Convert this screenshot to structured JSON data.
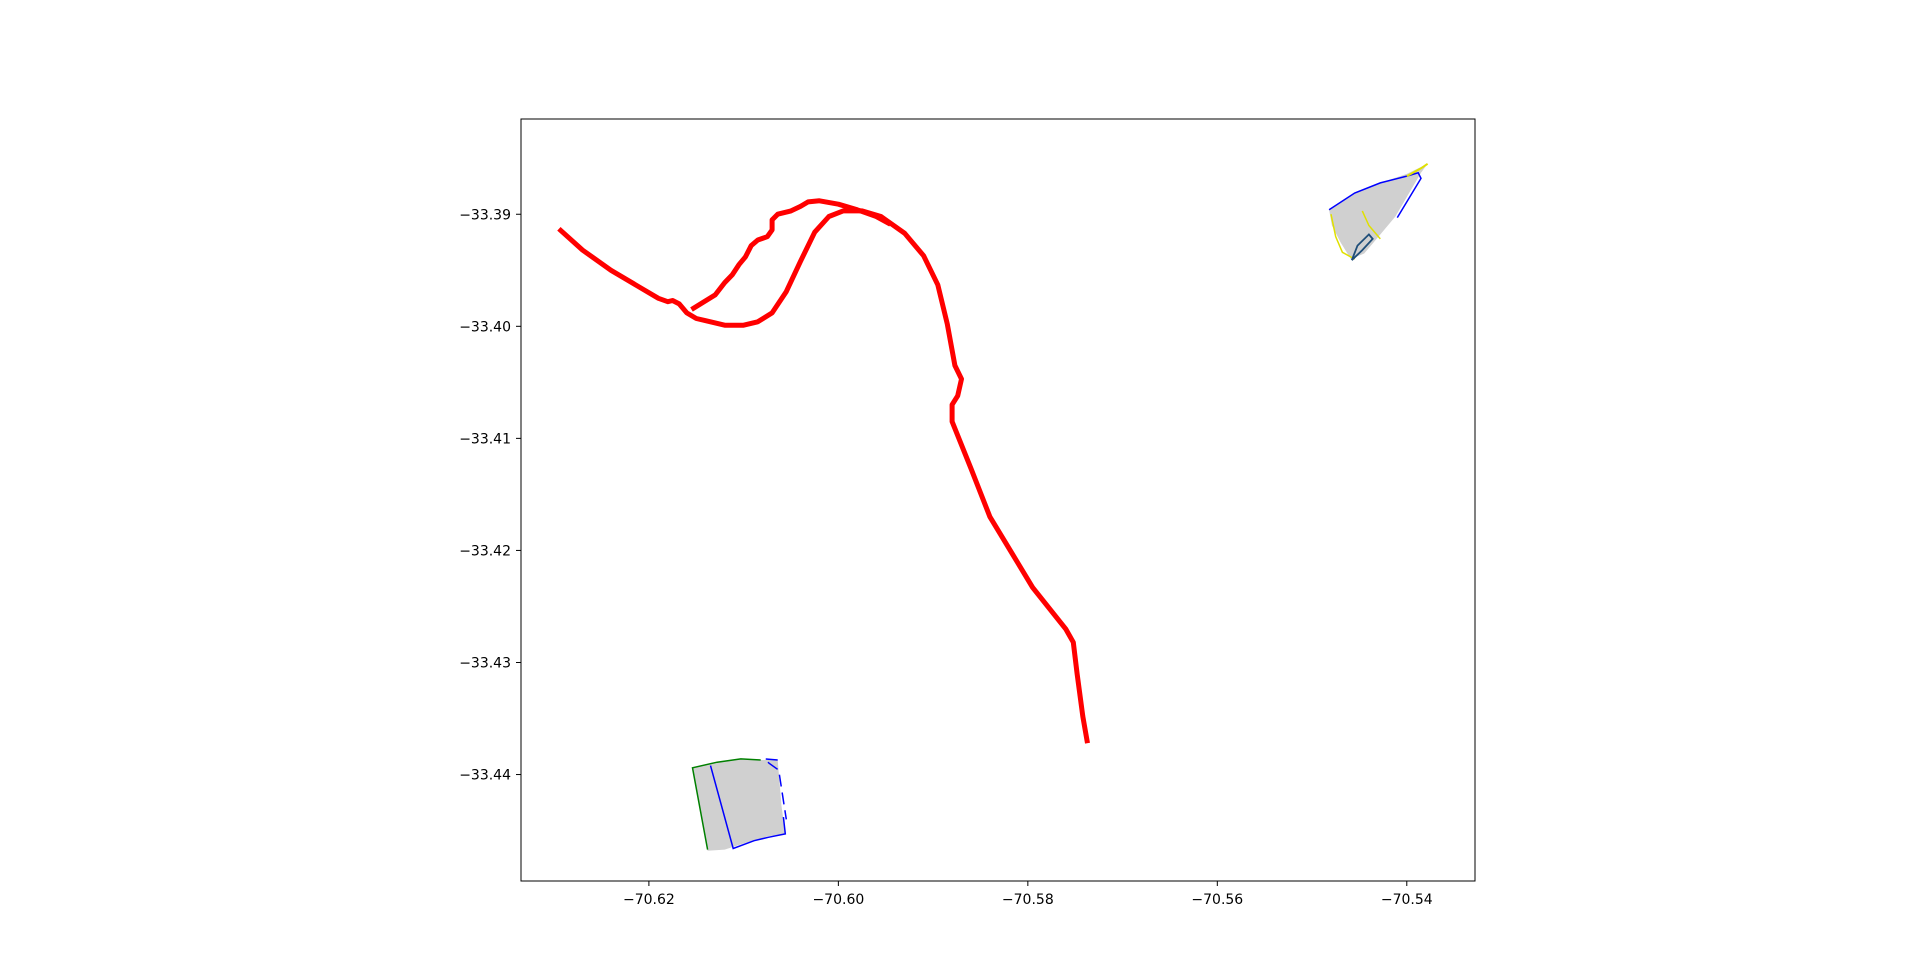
{
  "map": {
    "x_ticks": [
      {
        "value": -70.62,
        "label": "−70.62"
      },
      {
        "value": -70.6,
        "label": "−70.60"
      },
      {
        "value": -70.58,
        "label": "−70.58"
      },
      {
        "value": -70.56,
        "label": "−70.56"
      },
      {
        "value": -70.54,
        "label": "−70.54"
      }
    ],
    "y_ticks": [
      {
        "value": -33.39,
        "label": "−33.39"
      },
      {
        "value": -33.4,
        "label": "−33.40"
      },
      {
        "value": -33.41,
        "label": "−33.41"
      },
      {
        "value": -33.42,
        "label": "−33.42"
      },
      {
        "value": -33.43,
        "label": "−33.43"
      },
      {
        "value": -33.44,
        "label": "−33.44"
      }
    ],
    "xlim": [
      -70.6335,
      -70.5328
    ],
    "ylim": [
      -33.4495,
      -33.3815
    ],
    "route": {
      "color": "#ff0000",
      "points": [
        [
          -70.6295,
          -33.3913
        ],
        [
          -70.627,
          -33.3932
        ],
        [
          -70.624,
          -33.395
        ],
        [
          -70.621,
          -33.3965
        ],
        [
          -70.619,
          -33.3975
        ],
        [
          -70.618,
          -33.3978
        ],
        [
          -70.6175,
          -33.3977
        ],
        [
          -70.6168,
          -33.398
        ],
        [
          -70.616,
          -33.3988
        ],
        [
          -70.615,
          -33.3993
        ],
        [
          -70.614,
          -33.3995
        ],
        [
          -70.613,
          -33.3997
        ],
        [
          -70.612,
          -33.3999
        ],
        [
          -70.61,
          -33.3999
        ],
        [
          -70.6085,
          -33.3996
        ],
        [
          -70.607,
          -33.3988
        ],
        [
          -70.6055,
          -33.3969
        ],
        [
          -70.604,
          -33.3942
        ],
        [
          -70.6025,
          -33.3916
        ],
        [
          -70.601,
          -33.3902
        ],
        [
          -70.5995,
          -33.3897
        ],
        [
          -70.5975,
          -33.3897
        ],
        [
          -70.5955,
          -33.3902
        ],
        [
          -70.593,
          -33.3917
        ],
        [
          -70.591,
          -33.3937
        ],
        [
          -70.5895,
          -33.3963
        ],
        [
          -70.5885,
          -33.3998
        ],
        [
          -70.5877,
          -33.4035
        ],
        [
          -70.587,
          -33.4047
        ],
        [
          -70.5874,
          -33.4062
        ],
        [
          -70.588,
          -33.407
        ],
        [
          -70.588,
          -33.4085
        ],
        [
          -70.586,
          -33.4127
        ],
        [
          -70.584,
          -33.417
        ],
        [
          -70.582,
          -33.4198
        ],
        [
          -70.5795,
          -33.4233
        ],
        [
          -70.576,
          -33.427
        ],
        [
          -70.5752,
          -33.4282
        ],
        [
          -70.5748,
          -33.431
        ],
        [
          -70.5742,
          -33.4348
        ],
        [
          -70.5737,
          -33.4372
        ]
      ],
      "branch": [
        [
          -70.6155,
          -33.3985
        ],
        [
          -70.613,
          -33.3972
        ],
        [
          -70.612,
          -33.3961
        ],
        [
          -70.6112,
          -33.3954
        ],
        [
          -70.6105,
          -33.3945
        ],
        [
          -70.6098,
          -33.3938
        ],
        [
          -70.6092,
          -33.3928
        ],
        [
          -70.6085,
          -33.3923
        ],
        [
          -70.6075,
          -33.392
        ],
        [
          -70.607,
          -33.3914
        ],
        [
          -70.607,
          -33.3905
        ],
        [
          -70.6064,
          -33.39
        ],
        [
          -70.605,
          -33.3897
        ],
        [
          -70.604,
          -33.3893
        ],
        [
          -70.6032,
          -33.3889
        ],
        [
          -70.602,
          -33.3888
        ],
        [
          -70.6,
          -33.3891
        ],
        [
          -70.598,
          -33.3896
        ],
        [
          -70.596,
          -33.3902
        ],
        [
          -70.5945,
          -33.3909
        ]
      ]
    },
    "blocks": {
      "fill": "#d0d0d0",
      "line_blue": "#0000ff",
      "line_green": "#008000",
      "line_yellow": "#e0e000",
      "south_block": [
        [
          -70.6154,
          -33.4394
        ],
        [
          -70.6128,
          -33.4389
        ],
        [
          -70.6103,
          -33.4386
        ],
        [
          -70.608,
          -33.4387
        ],
        [
          -70.6064,
          -33.4387
        ],
        [
          -70.606,
          -33.4428
        ],
        [
          -70.6056,
          -33.4453
        ],
        [
          -70.6074,
          -33.4455
        ],
        [
          -70.609,
          -33.4459
        ],
        [
          -70.6098,
          -33.4461
        ],
        [
          -70.612,
          -33.4467
        ],
        [
          -70.6138,
          -33.4468
        ]
      ],
      "south_blue_a": [
        [
          -70.6135,
          -33.4392
        ],
        [
          -70.6111,
          -33.4466
        ],
        [
          -70.6089,
          -33.4459
        ],
        [
          -70.6074,
          -33.4456
        ],
        [
          -70.6056,
          -33.4453
        ],
        [
          -70.6058,
          -33.4438
        ]
      ],
      "south_blue_b": [
        [
          -70.6064,
          -33.4387
        ],
        [
          -70.6078,
          -33.4386
        ],
        [
          -70.6073,
          -33.439
        ],
        [
          -70.6063,
          -33.4396
        ],
        [
          -70.6055,
          -33.444
        ]
      ],
      "south_green": [
        [
          -70.6138,
          -33.4467
        ],
        [
          -70.6154,
          -33.4394
        ],
        [
          -70.6128,
          -33.4389
        ],
        [
          -70.6103,
          -33.4386
        ],
        [
          -70.6082,
          -33.4387
        ]
      ],
      "north_block": [
        [
          -70.5482,
          -33.3896
        ],
        [
          -70.5455,
          -33.3881
        ],
        [
          -70.5428,
          -33.3872
        ],
        [
          -70.54,
          -33.3864
        ],
        [
          -70.5378,
          -33.3855
        ],
        [
          -70.5385,
          -33.3863
        ],
        [
          -70.5412,
          -33.3902
        ],
        [
          -70.543,
          -33.392
        ],
        [
          -70.5445,
          -33.3935
        ],
        [
          -70.5459,
          -33.394
        ],
        [
          -70.547,
          -33.3925
        ],
        [
          -70.5479,
          -33.391
        ]
      ],
      "north_blue": [
        [
          -70.5482,
          -33.3896
        ],
        [
          -70.5455,
          -33.3881
        ],
        [
          -70.5428,
          -33.3872
        ],
        [
          -70.54,
          -33.3866
        ],
        [
          -70.5388,
          -33.3863
        ],
        [
          -70.5385,
          -33.3868
        ],
        [
          -70.541,
          -33.3903
        ]
      ],
      "north_green": [
        [
          -70.5458,
          -33.3941
        ],
        [
          -70.5447,
          -33.3932
        ],
        [
          -70.5436,
          -33.3922
        ],
        [
          -70.544,
          -33.3918
        ],
        [
          -70.5452,
          -33.3928
        ],
        [
          -70.5458,
          -33.3941
        ]
      ],
      "north_yellow_a": [
        [
          -70.548,
          -33.39
        ],
        [
          -70.5475,
          -33.392
        ],
        [
          -70.5468,
          -33.3934
        ],
        [
          -70.5455,
          -33.394
        ]
      ],
      "north_yellow_b": [
        [
          -70.5447,
          -33.3897
        ],
        [
          -70.544,
          -33.391
        ],
        [
          -70.5428,
          -33.3922
        ]
      ],
      "north_yellow_c": [
        [
          -70.54,
          -33.3866
        ],
        [
          -70.5385,
          -33.3859
        ],
        [
          -70.5378,
          -33.3855
        ]
      ]
    }
  }
}
